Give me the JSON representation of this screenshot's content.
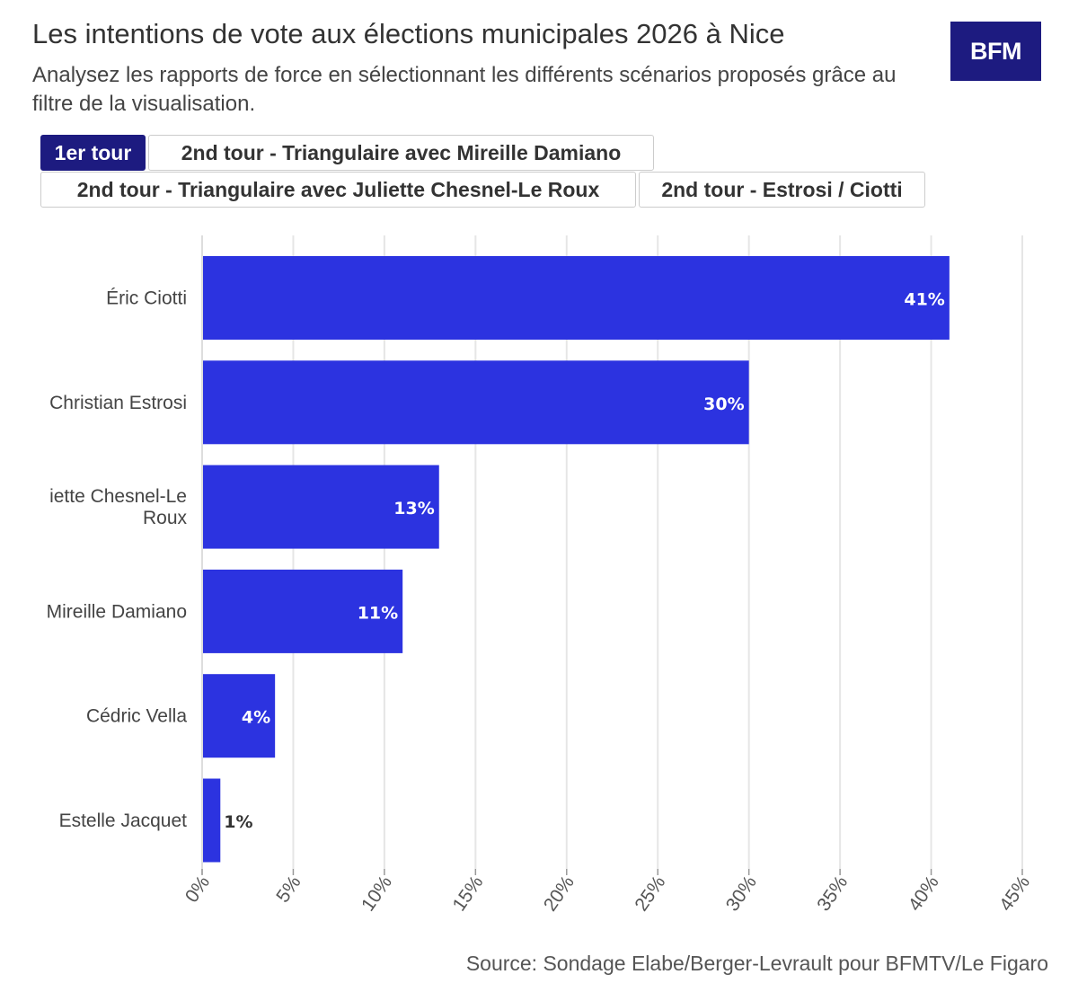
{
  "header": {
    "title": "Les intentions de vote aux élections municipales 2026 à Nice",
    "subtitle": "Analysez les rapports de force en sélectionnant les différents scénarios proposés grâce au filtre de la visualisation.",
    "logo_text": "BFM"
  },
  "tabs": [
    {
      "label": "1er tour",
      "active": true
    },
    {
      "label": "2nd tour - Triangulaire avec Mireille Damiano",
      "active": false
    },
    {
      "label": "2nd tour - Triangulaire avec Juliette Chesnel-Le Roux",
      "active": false
    },
    {
      "label": "2nd tour - Estrosi / Ciotti",
      "active": false
    }
  ],
  "colors": {
    "bar": "#2c33e0",
    "accent": "#1d1b80",
    "grid": "#e6e6e6"
  },
  "chart_data": {
    "type": "bar",
    "orientation": "horizontal",
    "categories": [
      "Éric Ciotti",
      "Christian Estrosi",
      "Juliette Chesnel-Le Roux",
      "Mireille Damiano",
      "Cédric Vella",
      "Estelle Jacquet"
    ],
    "category_display": [
      [
        "Éric Ciotti"
      ],
      [
        "Christian Estrosi"
      ],
      [
        "iette Chesnel-Le",
        "Roux"
      ],
      [
        "Mireille Damiano"
      ],
      [
        "Cédric Vella"
      ],
      [
        "Estelle Jacquet"
      ]
    ],
    "values": [
      41,
      30,
      13,
      11,
      4,
      1
    ],
    "data_labels": [
      "41%",
      "30%",
      "13%",
      "11%",
      "4%",
      "1%"
    ],
    "xlim": [
      0,
      45
    ],
    "ticks": [
      0,
      5,
      10,
      15,
      20,
      25,
      30,
      35,
      40,
      45
    ],
    "tick_labels": [
      "0%",
      "5%",
      "10%",
      "15%",
      "20%",
      "25%",
      "30%",
      "35%",
      "40%",
      "45%"
    ],
    "grid": true,
    "title": "Les intentions de vote aux élections municipales 2026 à Nice",
    "xlabel": "",
    "ylabel": ""
  },
  "footer": {
    "source": "Source: Sondage Elabe/Berger-Levrault pour BFMTV/Le Figaro"
  }
}
